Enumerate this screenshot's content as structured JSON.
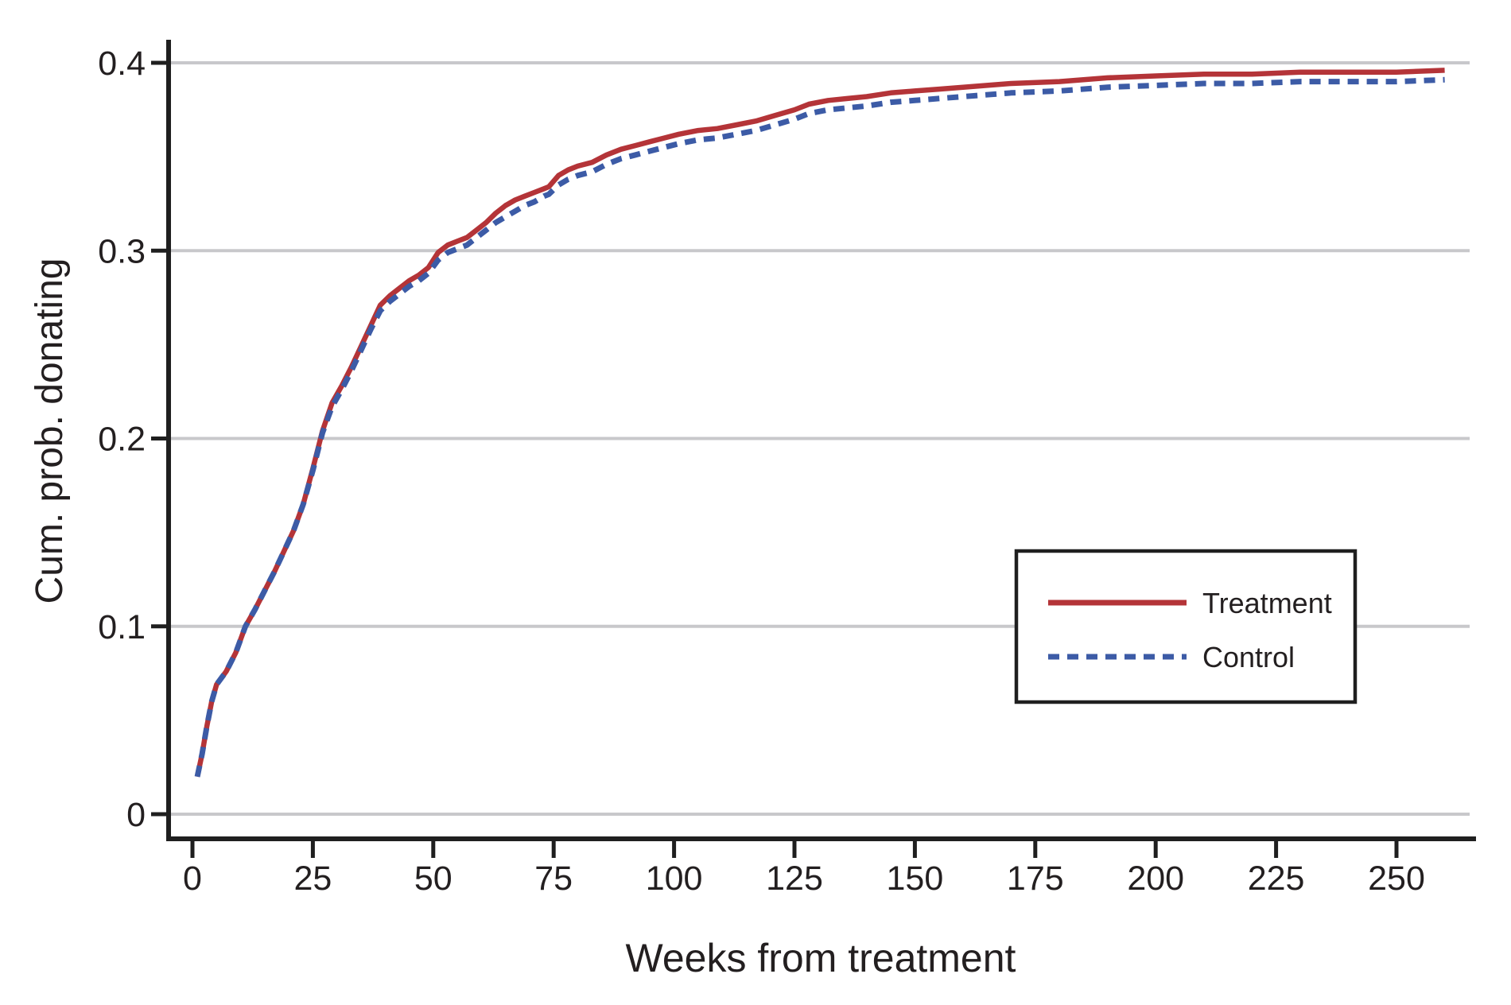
{
  "colors": {
    "background": "#ffffff",
    "axis": "#1f1f1f",
    "text": "#231f20",
    "gridline": "#c8c8cb",
    "treatment": "#b43438",
    "control": "#3c5ba6",
    "legend_border": "#1f1f1f"
  },
  "chart_data": {
    "type": "line",
    "title": "",
    "xlabel": "Weeks from treatment",
    "ylabel": "Cum. prob. donating",
    "xlim": [
      0,
      260
    ],
    "ylim": [
      0,
      0.4
    ],
    "x_ticks": [
      0,
      25,
      50,
      75,
      100,
      125,
      150,
      175,
      200,
      225,
      250
    ],
    "y_ticks": [
      0,
      0.1,
      0.2,
      0.3,
      0.4
    ],
    "y_tick_labels": [
      "0",
      "0.1",
      "0.2",
      "0.3",
      "0.4"
    ],
    "grid": "horizontal",
    "legend_position": "inside-right",
    "x": [
      1,
      2,
      3,
      4,
      5,
      7,
      9,
      11,
      13,
      15,
      17,
      19,
      21,
      23,
      25,
      27,
      29,
      31,
      33,
      35,
      37,
      39,
      41,
      43,
      45,
      47,
      49,
      51,
      53,
      55,
      57,
      59,
      61,
      63,
      65,
      67,
      69,
      71,
      73,
      74,
      76,
      78,
      80,
      83,
      86,
      89,
      92,
      95,
      98,
      101,
      105,
      109,
      113,
      117,
      121,
      125,
      128,
      132,
      136,
      140,
      145,
      150,
      155,
      160,
      170,
      180,
      190,
      200,
      210,
      220,
      230,
      240,
      250,
      260
    ],
    "series": [
      {
        "name": "Treatment",
        "style": "solid",
        "color": "#b43438",
        "values": [
          0.02,
          0.032,
          0.047,
          0.06,
          0.069,
          0.076,
          0.086,
          0.1,
          0.109,
          0.119,
          0.129,
          0.14,
          0.151,
          0.165,
          0.184,
          0.204,
          0.219,
          0.228,
          0.238,
          0.249,
          0.26,
          0.271,
          0.276,
          0.28,
          0.284,
          0.287,
          0.291,
          0.299,
          0.303,
          0.305,
          0.307,
          0.311,
          0.315,
          0.32,
          0.324,
          0.327,
          0.329,
          0.331,
          0.333,
          0.334,
          0.34,
          0.343,
          0.345,
          0.347,
          0.351,
          0.354,
          0.356,
          0.358,
          0.36,
          0.362,
          0.364,
          0.365,
          0.367,
          0.369,
          0.372,
          0.375,
          0.378,
          0.38,
          0.381,
          0.382,
          0.384,
          0.385,
          0.386,
          0.387,
          0.389,
          0.39,
          0.392,
          0.393,
          0.394,
          0.394,
          0.395,
          0.395,
          0.395,
          0.396
        ]
      },
      {
        "name": "Control",
        "style": "dashed",
        "color": "#3c5ba6",
        "values": [
          0.02,
          0.032,
          0.047,
          0.06,
          0.069,
          0.076,
          0.086,
          0.1,
          0.109,
          0.119,
          0.129,
          0.14,
          0.151,
          0.165,
          0.183,
          0.203,
          0.217,
          0.226,
          0.236,
          0.247,
          0.258,
          0.268,
          0.273,
          0.277,
          0.281,
          0.284,
          0.288,
          0.295,
          0.299,
          0.301,
          0.303,
          0.307,
          0.311,
          0.315,
          0.318,
          0.321,
          0.324,
          0.326,
          0.329,
          0.33,
          0.335,
          0.338,
          0.34,
          0.342,
          0.346,
          0.349,
          0.351,
          0.353,
          0.355,
          0.357,
          0.359,
          0.36,
          0.362,
          0.364,
          0.367,
          0.37,
          0.373,
          0.375,
          0.376,
          0.377,
          0.379,
          0.38,
          0.381,
          0.382,
          0.384,
          0.385,
          0.387,
          0.388,
          0.389,
          0.389,
          0.39,
          0.39,
          0.39,
          0.391
        ]
      }
    ]
  }
}
